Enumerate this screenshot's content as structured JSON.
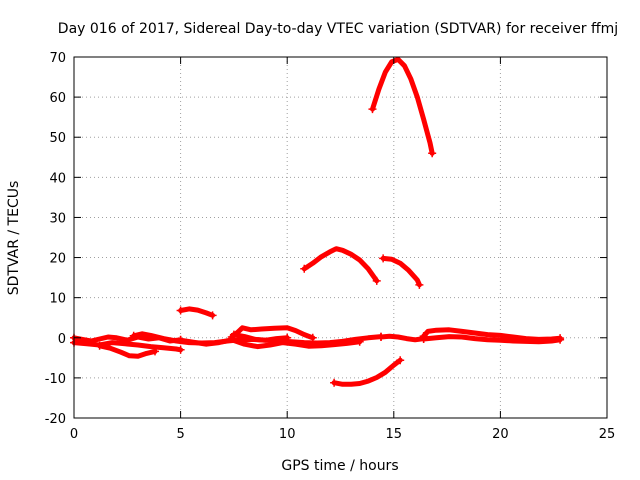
{
  "chart_data": {
    "type": "line",
    "title": "Day 016 of 2017, Sidereal Day-to-day VTEC variation (SDTVAR) for receiver ffmj",
    "xlabel": "GPS time / hours",
    "ylabel": "SDTVAR / TECUs",
    "xlim": [
      0,
      25
    ],
    "ylim": [
      -20,
      70
    ],
    "xticks": [
      "0",
      "5",
      "10",
      "15",
      "20",
      "25"
    ],
    "yticks": [
      "-20",
      "-10",
      "0",
      "10",
      "20",
      "30",
      "40",
      "50",
      "60",
      "70"
    ],
    "grid": true,
    "color": "#ff0000",
    "segments": [
      {
        "points": [
          [
            0,
            0
          ],
          [
            0.4,
            -0.4
          ],
          [
            0.8,
            -0.8
          ],
          [
            1.2,
            -0.3
          ],
          [
            1.6,
            0.2
          ],
          [
            2,
            0
          ],
          [
            2.5,
            -0.6
          ],
          [
            3,
            0.2
          ],
          [
            3.5,
            -0.3
          ],
          [
            4,
            0
          ],
          [
            4.5,
            -0.8
          ],
          [
            5,
            -0.5
          ]
        ]
      },
      {
        "points": [
          [
            0,
            -1.2
          ],
          [
            0.6,
            -1.5
          ],
          [
            1.2,
            -1.8
          ],
          [
            1.8,
            -1.2
          ],
          [
            2.4,
            -1.5
          ],
          [
            3,
            -1.8
          ],
          [
            3.6,
            -2.2
          ],
          [
            4.2,
            -2.5
          ],
          [
            4.8,
            -2.8
          ],
          [
            5,
            -3
          ]
        ]
      },
      {
        "points": [
          [
            1.2,
            -2
          ],
          [
            1.7,
            -2.6
          ],
          [
            2.2,
            -3.6
          ],
          [
            2.6,
            -4.5
          ],
          [
            3.0,
            -4.6
          ],
          [
            3.4,
            -3.9
          ],
          [
            3.8,
            -3.4
          ]
        ]
      },
      {
        "points": [
          [
            2.8,
            0.5
          ],
          [
            3.2,
            1.0
          ],
          [
            3.6,
            0.6
          ],
          [
            4.2,
            -0.2
          ],
          [
            4.8,
            -0.8
          ],
          [
            5.4,
            -1.2
          ],
          [
            6,
            -1.3
          ],
          [
            6.6,
            -1.2
          ],
          [
            7.2,
            -0.8
          ],
          [
            7.8,
            -0.5
          ],
          [
            8.4,
            -0.4
          ],
          [
            9,
            -0.6
          ],
          [
            9.6,
            -0.8
          ],
          [
            10.2,
            -1.0
          ],
          [
            10.8,
            -1.2
          ],
          [
            11.4,
            -1.3
          ],
          [
            12,
            -1.2
          ],
          [
            12.6,
            -0.9
          ],
          [
            13.2,
            -0.4
          ],
          [
            13.8,
            0
          ],
          [
            14.4,
            0.3
          ]
        ]
      },
      {
        "points": [
          [
            5,
            -0.6
          ],
          [
            5.6,
            -1.1
          ],
          [
            6.2,
            -1.6
          ],
          [
            6.8,
            -1.2
          ],
          [
            7.4,
            -0.5
          ],
          [
            8,
            -1.6
          ],
          [
            8.6,
            -2.2
          ],
          [
            9.2,
            -1.8
          ],
          [
            9.8,
            -1.2
          ],
          [
            10.4,
            -1.6
          ],
          [
            11,
            -2.1
          ],
          [
            11.6,
            -2.0
          ],
          [
            12.2,
            -1.7
          ],
          [
            12.8,
            -1.4
          ],
          [
            13.4,
            -1.0
          ]
        ]
      },
      {
        "points": [
          [
            7.4,
            0.2
          ],
          [
            7.7,
            1.5
          ],
          [
            7.9,
            2.5
          ],
          [
            8.3,
            2.0
          ],
          [
            8.8,
            2.2
          ],
          [
            9.4,
            2.4
          ],
          [
            10,
            2.5
          ],
          [
            10.4,
            1.8
          ],
          [
            10.8,
            0.8
          ],
          [
            11.2,
            0
          ]
        ]
      },
      {
        "points": [
          [
            7.5,
            0.8
          ],
          [
            8,
            0.3
          ],
          [
            8.5,
            -0.4
          ],
          [
            9,
            -0.6
          ],
          [
            9.5,
            -0.2
          ],
          [
            10,
            0
          ]
        ]
      },
      {
        "points": [
          [
            5,
            6.8
          ],
          [
            5.4,
            7.2
          ],
          [
            5.8,
            6.9
          ],
          [
            6.2,
            6.2
          ],
          [
            6.5,
            5.6
          ]
        ]
      },
      {
        "points": [
          [
            10.8,
            17.2
          ],
          [
            11.2,
            18.6
          ],
          [
            11.6,
            20.2
          ],
          [
            12,
            21.4
          ],
          [
            12.3,
            22.2
          ],
          [
            12.6,
            21.8
          ],
          [
            13.0,
            20.8
          ],
          [
            13.4,
            19.4
          ],
          [
            13.8,
            17.2
          ],
          [
            14.2,
            14.2
          ]
        ]
      },
      {
        "points": [
          [
            14.5,
            19.8
          ],
          [
            14.9,
            19.6
          ],
          [
            15.3,
            18.6
          ],
          [
            15.7,
            16.8
          ],
          [
            16.1,
            14.4
          ],
          [
            16.2,
            13.2
          ]
        ]
      },
      {
        "points": [
          [
            14,
            57
          ],
          [
            14.3,
            62
          ],
          [
            14.6,
            66.2
          ],
          [
            14.9,
            68.8
          ],
          [
            15.2,
            69.4
          ],
          [
            15.5,
            67.8
          ],
          [
            15.8,
            64.5
          ],
          [
            16.1,
            60
          ],
          [
            16.4,
            54.5
          ],
          [
            16.7,
            48.6
          ],
          [
            16.8,
            46
          ]
        ]
      },
      {
        "points": [
          [
            12.2,
            -11.2
          ],
          [
            12.6,
            -11.6
          ],
          [
            13.0,
            -11.6
          ],
          [
            13.4,
            -11.4
          ],
          [
            13.8,
            -10.8
          ],
          [
            14.2,
            -9.9
          ],
          [
            14.6,
            -8.6
          ],
          [
            15.0,
            -6.8
          ],
          [
            15.3,
            -5.6
          ]
        ]
      },
      {
        "points": [
          [
            14.4,
            0.2
          ],
          [
            14.8,
            0.4
          ],
          [
            15.2,
            0.2
          ],
          [
            15.6,
            -0.2
          ],
          [
            16,
            -0.5
          ],
          [
            16.4,
            -0.2
          ]
        ]
      },
      {
        "points": [
          [
            16.4,
            0.4
          ],
          [
            16.6,
            1.6
          ],
          [
            17,
            1.9
          ],
          [
            17.6,
            2.0
          ],
          [
            18.2,
            1.6
          ],
          [
            18.8,
            1.2
          ],
          [
            19.4,
            0.8
          ],
          [
            20,
            0.6
          ],
          [
            20.6,
            0.2
          ],
          [
            21.2,
            -0.2
          ],
          [
            21.8,
            -0.4
          ],
          [
            22.4,
            -0.3
          ],
          [
            22.8,
            -0.1
          ]
        ]
      },
      {
        "points": [
          [
            16.4,
            -0.3
          ],
          [
            17,
            0
          ],
          [
            17.6,
            0.3
          ],
          [
            18.2,
            0.2
          ],
          [
            18.8,
            -0.2
          ],
          [
            19.4,
            -0.5
          ],
          [
            20,
            -0.6
          ],
          [
            20.6,
            -0.8
          ],
          [
            21.2,
            -0.9
          ],
          [
            21.8,
            -1.0
          ],
          [
            22.4,
            -0.8
          ],
          [
            22.8,
            -0.5
          ]
        ]
      }
    ]
  }
}
